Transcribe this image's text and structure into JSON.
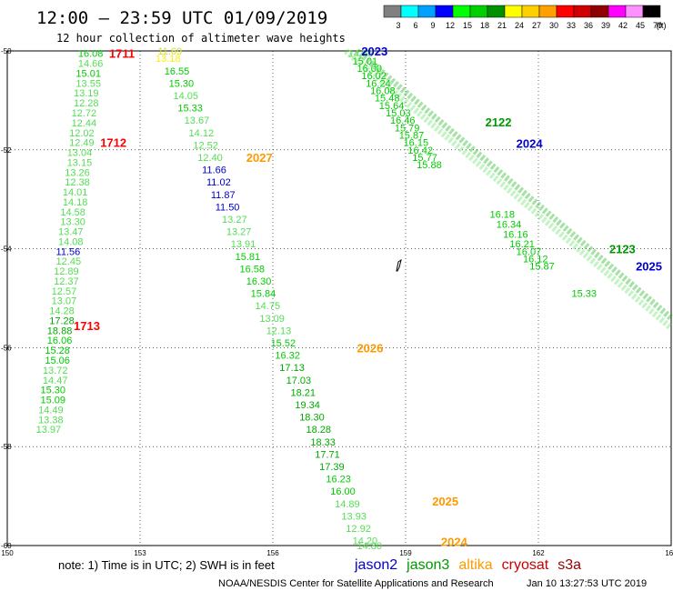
{
  "header": {
    "title": "12:00 – 23:59 UTC 01/09/2019",
    "subtitle": "12 hour collection of altimeter wave heights"
  },
  "legend": {
    "unit": "(ft)",
    "ticks": [
      "3",
      "6",
      "9",
      "12",
      "15",
      "18",
      "21",
      "24",
      "27",
      "30",
      "33",
      "36",
      "39",
      "42",
      "45",
      "70"
    ],
    "colors": [
      "#808080",
      "#00ffff",
      "#00a0ff",
      "#0000ff",
      "#00ff00",
      "#00d000",
      "#009000",
      "#ffff00",
      "#ffd000",
      "#ffa000",
      "#ff0000",
      "#d00000",
      "#900000",
      "#ff00ff",
      "#ff90ff",
      "#000000"
    ]
  },
  "footer": {
    "note": "note: 1) Time is in UTC; 2) SWH is in feet",
    "credit": "NOAA/NESDIS Center for Satellite Applications and Research",
    "timestamp": "Jan 10 13:27:53 UTC 2019",
    "satellites": [
      {
        "name": "jason2",
        "color": "#0000cc"
      },
      {
        "name": "jason3",
        "color": "#009900"
      },
      {
        "name": "altika",
        "color": "#ff9900"
      },
      {
        "name": "cryosat",
        "color": "#cc0000"
      },
      {
        "name": "s3a",
        "color": "#990000"
      }
    ]
  },
  "chart_data": {
    "type": "scatter",
    "title": "12:00 – 23:59 UTC 01/09/2019",
    "xlim": [
      150,
      165
    ],
    "ylim": [
      -60,
      -50
    ],
    "x_ticks": [
      "150",
      "153",
      "156",
      "159",
      "162",
      "165"
    ],
    "y_ticks": [
      "-50",
      "-52",
      "-54",
      "-56",
      "-58",
      "-60"
    ],
    "grid": true,
    "pass_labels": [
      {
        "label": "1711",
        "x": 152.3,
        "y": -50.05,
        "color": "#ff0000"
      },
      {
        "label": "1712",
        "x": 152.1,
        "y": -51.85,
        "color": "#ff0000"
      },
      {
        "label": "1713",
        "x": 151.5,
        "y": -55.55,
        "color": "#ff0000"
      },
      {
        "label": "2027",
        "x": 155.4,
        "y": -52.15,
        "color": "#ff9900"
      },
      {
        "label": "2026",
        "x": 157.9,
        "y": -56.0,
        "color": "#ff9900"
      },
      {
        "label": "2025",
        "x": 159.6,
        "y": -59.1,
        "color": "#ff9900"
      },
      {
        "label": "2024",
        "x": 159.8,
        "y": -59.92,
        "color": "#ff9900"
      },
      {
        "label": "2023",
        "x": 158.0,
        "y": -50.0,
        "color": "#0000cc"
      },
      {
        "label": "2122",
        "x": 160.8,
        "y": -51.43,
        "color": "#009900"
      },
      {
        "label": "2024",
        "x": 161.5,
        "y": -51.87,
        "color": "#0000cc"
      },
      {
        "label": "2123",
        "x": 163.6,
        "y": -54.0,
        "color": "#009900"
      },
      {
        "label": "2025",
        "x": 164.2,
        "y": -54.35,
        "color": "#0000cc"
      }
    ],
    "series": [
      {
        "name": "1711",
        "points": [
          {
            "x": 151.6,
            "y": -50.05,
            "v": "16.08",
            "c": "#00cc00"
          },
          {
            "x": 151.6,
            "y": -50.25,
            "v": "14.66",
            "c": "#55dd55"
          },
          {
            "x": 151.55,
            "y": -50.45,
            "v": "15.01",
            "c": "#00cc00"
          },
          {
            "x": 151.55,
            "y": -50.65,
            "v": "13.55",
            "c": "#55dd55"
          },
          {
            "x": 151.5,
            "y": -50.85,
            "v": "13.19",
            "c": "#55dd55"
          },
          {
            "x": 151.5,
            "y": -51.05,
            "v": "12.28",
            "c": "#55dd55"
          },
          {
            "x": 151.45,
            "y": -51.25,
            "v": "12.72",
            "c": "#55dd55"
          },
          {
            "x": 151.45,
            "y": -51.45,
            "v": "12.44",
            "c": "#55dd55"
          },
          {
            "x": 151.4,
            "y": -51.65,
            "v": "12.02",
            "c": "#55dd55"
          },
          {
            "x": 151.4,
            "y": -51.85,
            "v": "12.49",
            "c": "#55dd55"
          },
          {
            "x": 151.35,
            "y": -52.05,
            "v": "13.04",
            "c": "#55dd55"
          },
          {
            "x": 151.35,
            "y": -52.25,
            "v": "13.15",
            "c": "#55dd55"
          },
          {
            "x": 151.3,
            "y": -52.45,
            "v": "13.26",
            "c": "#55dd55"
          },
          {
            "x": 151.3,
            "y": -52.65,
            "v": "12.38",
            "c": "#55dd55"
          },
          {
            "x": 151.25,
            "y": -52.85,
            "v": "14.01",
            "c": "#55dd55"
          },
          {
            "x": 151.25,
            "y": -53.05,
            "v": "14.18",
            "c": "#55dd55"
          },
          {
            "x": 151.2,
            "y": -53.25,
            "v": "14.58",
            "c": "#55dd55"
          },
          {
            "x": 151.2,
            "y": -53.45,
            "v": "13.30",
            "c": "#55dd55"
          },
          {
            "x": 151.15,
            "y": -53.65,
            "v": "13.47",
            "c": "#55dd55"
          },
          {
            "x": 151.15,
            "y": -53.85,
            "v": "14.08",
            "c": "#55dd55"
          },
          {
            "x": 151.1,
            "y": -54.05,
            "v": "11.56",
            "c": "#0000cc"
          },
          {
            "x": 151.1,
            "y": -54.25,
            "v": "12.45",
            "c": "#55dd55"
          },
          {
            "x": 151.05,
            "y": -54.45,
            "v": "12.89",
            "c": "#55dd55"
          },
          {
            "x": 151.05,
            "y": -54.65,
            "v": "12.37",
            "c": "#55dd55"
          },
          {
            "x": 151.0,
            "y": -54.85,
            "v": "12.57",
            "c": "#55dd55"
          },
          {
            "x": 151.0,
            "y": -55.05,
            "v": "13.07",
            "c": "#55dd55"
          },
          {
            "x": 150.95,
            "y": -55.25,
            "v": "14.28",
            "c": "#55dd55"
          },
          {
            "x": 150.95,
            "y": -55.45,
            "v": "17.28",
            "c": "#00aa00"
          },
          {
            "x": 150.9,
            "y": -55.65,
            "v": "18.88",
            "c": "#00aa00"
          },
          {
            "x": 150.9,
            "y": -55.85,
            "v": "16.06",
            "c": "#00cc00"
          },
          {
            "x": 150.85,
            "y": -56.05,
            "v": "15.28",
            "c": "#00cc00"
          },
          {
            "x": 150.85,
            "y": -56.25,
            "v": "15.06",
            "c": "#00cc00"
          },
          {
            "x": 150.8,
            "y": -56.45,
            "v": "13.72",
            "c": "#55dd55"
          },
          {
            "x": 150.8,
            "y": -56.65,
            "v": "14.47",
            "c": "#55dd55"
          },
          {
            "x": 150.75,
            "y": -56.85,
            "v": "15.30",
            "c": "#00cc00"
          },
          {
            "x": 150.75,
            "y": -57.05,
            "v": "15.09",
            "c": "#00cc00"
          },
          {
            "x": 150.7,
            "y": -57.25,
            "v": "14.49",
            "c": "#55dd55"
          },
          {
            "x": 150.7,
            "y": -57.45,
            "v": "13.38",
            "c": "#55dd55"
          },
          {
            "x": 150.65,
            "y": -57.65,
            "v": "13.97",
            "c": "#55dd55"
          }
        ]
      },
      {
        "name": "2027",
        "points": [
          {
            "x": 153.4,
            "y": -50.0,
            "v": "11.69",
            "c": "#ccdd33"
          },
          {
            "x": 153.35,
            "y": -50.15,
            "v": "13.18",
            "c": "#ffee00"
          },
          {
            "x": 153.55,
            "y": -50.4,
            "v": "16.55",
            "c": "#00cc00"
          },
          {
            "x": 153.65,
            "y": -50.65,
            "v": "15.30",
            "c": "#00cc00"
          },
          {
            "x": 153.75,
            "y": -50.9,
            "v": "14.05",
            "c": "#55dd55"
          },
          {
            "x": 153.85,
            "y": -51.15,
            "v": "15.33",
            "c": "#00cc00"
          },
          {
            "x": 154.0,
            "y": -51.4,
            "v": "13.67",
            "c": "#55dd55"
          },
          {
            "x": 154.1,
            "y": -51.65,
            "v": "14.12",
            "c": "#55dd55"
          },
          {
            "x": 154.2,
            "y": -51.9,
            "v": "12.52",
            "c": "#55dd55"
          },
          {
            "x": 154.3,
            "y": -52.15,
            "v": "12.40",
            "c": "#55dd55"
          },
          {
            "x": 154.4,
            "y": -52.4,
            "v": "11.66",
            "c": "#0000cc"
          },
          {
            "x": 154.5,
            "y": -52.65,
            "v": "11.02",
            "c": "#0000cc"
          },
          {
            "x": 154.6,
            "y": -52.9,
            "v": "11.87",
            "c": "#0000cc"
          },
          {
            "x": 154.7,
            "y": -53.15,
            "v": "11.50",
            "c": "#0000cc"
          },
          {
            "x": 154.85,
            "y": -53.4,
            "v": "13.27",
            "c": "#55dd55"
          },
          {
            "x": 154.95,
            "y": -53.65,
            "v": "13.27",
            "c": "#55dd55"
          },
          {
            "x": 155.05,
            "y": -53.9,
            "v": "13.91",
            "c": "#55dd55"
          },
          {
            "x": 155.15,
            "y": -54.15,
            "v": "15.81",
            "c": "#00cc00"
          },
          {
            "x": 155.25,
            "y": -54.4,
            "v": "16.58",
            "c": "#00cc00"
          },
          {
            "x": 155.4,
            "y": -54.65,
            "v": "16.30",
            "c": "#00cc00"
          },
          {
            "x": 155.5,
            "y": -54.9,
            "v": "15.84",
            "c": "#00cc00"
          },
          {
            "x": 155.6,
            "y": -55.15,
            "v": "14.75",
            "c": "#55dd55"
          },
          {
            "x": 155.7,
            "y": -55.4,
            "v": "13.09",
            "c": "#55dd55"
          },
          {
            "x": 155.85,
            "y": -55.65,
            "v": "12.13",
            "c": "#55dd55"
          },
          {
            "x": 155.95,
            "y": -55.9,
            "v": "15.52",
            "c": "#00cc00"
          },
          {
            "x": 156.05,
            "y": -56.15,
            "v": "16.32",
            "c": "#00cc00"
          },
          {
            "x": 156.15,
            "y": -56.4,
            "v": "17.13",
            "c": "#00aa00"
          },
          {
            "x": 156.3,
            "y": -56.65,
            "v": "17.03",
            "c": "#00aa00"
          },
          {
            "x": 156.4,
            "y": -56.9,
            "v": "18.21",
            "c": "#00aa00"
          },
          {
            "x": 156.5,
            "y": -57.15,
            "v": "19.34",
            "c": "#00aa00"
          },
          {
            "x": 156.6,
            "y": -57.4,
            "v": "18.30",
            "c": "#00aa00"
          },
          {
            "x": 156.75,
            "y": -57.65,
            "v": "18.28",
            "c": "#00aa00"
          },
          {
            "x": 156.85,
            "y": -57.9,
            "v": "18.33",
            "c": "#00aa00"
          },
          {
            "x": 156.95,
            "y": -58.15,
            "v": "17.71",
            "c": "#00aa00"
          },
          {
            "x": 157.05,
            "y": -58.4,
            "v": "17.39",
            "c": "#00aa00"
          },
          {
            "x": 157.2,
            "y": -58.65,
            "v": "16.23",
            "c": "#00cc00"
          },
          {
            "x": 157.3,
            "y": -58.9,
            "v": "16.00",
            "c": "#00cc00"
          },
          {
            "x": 157.4,
            "y": -59.15,
            "v": "14.89",
            "c": "#55dd55"
          },
          {
            "x": 157.55,
            "y": -59.4,
            "v": "13.93",
            "c": "#55dd55"
          },
          {
            "x": 157.65,
            "y": -59.65,
            "v": "12.92",
            "c": "#55dd55"
          },
          {
            "x": 157.8,
            "y": -59.9,
            "v": "14.20",
            "c": "#55dd55"
          },
          {
            "x": 157.9,
            "y": -60.0,
            "v": "14.80",
            "c": "#55dd55"
          }
        ]
      },
      {
        "name": "2122",
        "points": [
          {
            "x": 157.7,
            "y": -50.05,
            "v": "14.96",
            "c": "#55dd55"
          },
          {
            "x": 157.8,
            "y": -50.2,
            "v": "15.01",
            "c": "#00cc00"
          },
          {
            "x": 157.9,
            "y": -50.35,
            "v": "16.00",
            "c": "#00cc00"
          },
          {
            "x": 158.0,
            "y": -50.5,
            "v": "16.02",
            "c": "#00cc00"
          },
          {
            "x": 158.1,
            "y": -50.65,
            "v": "16.24",
            "c": "#00cc00"
          },
          {
            "x": 158.2,
            "y": -50.8,
            "v": "16.08",
            "c": "#00cc00"
          },
          {
            "x": 158.3,
            "y": -50.95,
            "v": "15.48",
            "c": "#00cc00"
          },
          {
            "x": 158.4,
            "y": -51.1,
            "v": "15.64",
            "c": "#00cc00"
          },
          {
            "x": 158.55,
            "y": -51.25,
            "v": "15.03",
            "c": "#00cc00"
          },
          {
            "x": 158.65,
            "y": -51.4,
            "v": "16.46",
            "c": "#00cc00"
          },
          {
            "x": 158.75,
            "y": -51.55,
            "v": "15.79",
            "c": "#00cc00"
          },
          {
            "x": 158.85,
            "y": -51.7,
            "v": "15.87",
            "c": "#00cc00"
          },
          {
            "x": 158.95,
            "y": -51.85,
            "v": "16.15",
            "c": "#00cc00"
          },
          {
            "x": 159.05,
            "y": -52.0,
            "v": "16.42",
            "c": "#00cc00"
          },
          {
            "x": 159.15,
            "y": -52.15,
            "v": "15.77",
            "c": "#00cc00"
          },
          {
            "x": 159.25,
            "y": -52.3,
            "v": "15.88",
            "c": "#00cc00"
          }
        ]
      },
      {
        "name": "2123",
        "points": [
          {
            "x": 160.9,
            "y": -53.3,
            "v": "16.18",
            "c": "#00cc00"
          },
          {
            "x": 161.05,
            "y": -53.5,
            "v": "16.34",
            "c": "#00cc00"
          },
          {
            "x": 161.2,
            "y": -53.7,
            "v": "16.16",
            "c": "#00cc00"
          },
          {
            "x": 161.35,
            "y": -53.9,
            "v": "16.21",
            "c": "#00cc00"
          },
          {
            "x": 161.5,
            "y": -54.05,
            "v": "16.07",
            "c": "#00cc00"
          },
          {
            "x": 161.65,
            "y": -54.2,
            "v": "16.12",
            "c": "#00cc00"
          },
          {
            "x": 161.8,
            "y": -54.35,
            "v": "15.87",
            "c": "#00cc00"
          }
        ]
      },
      {
        "name": "2025",
        "points": [
          {
            "x": 162.75,
            "y": -54.9,
            "v": "15.33",
            "c": "#00cc00"
          }
        ]
      }
    ],
    "tracks": [
      {
        "x1": 157.65,
        "y1": -50.0,
        "x2": 165.0,
        "y2": -55.6,
        "color": "#55dd55"
      },
      {
        "x1": 157.9,
        "y1": -50.0,
        "x2": 165.0,
        "y2": -55.4,
        "color": "#00aa00"
      }
    ]
  }
}
